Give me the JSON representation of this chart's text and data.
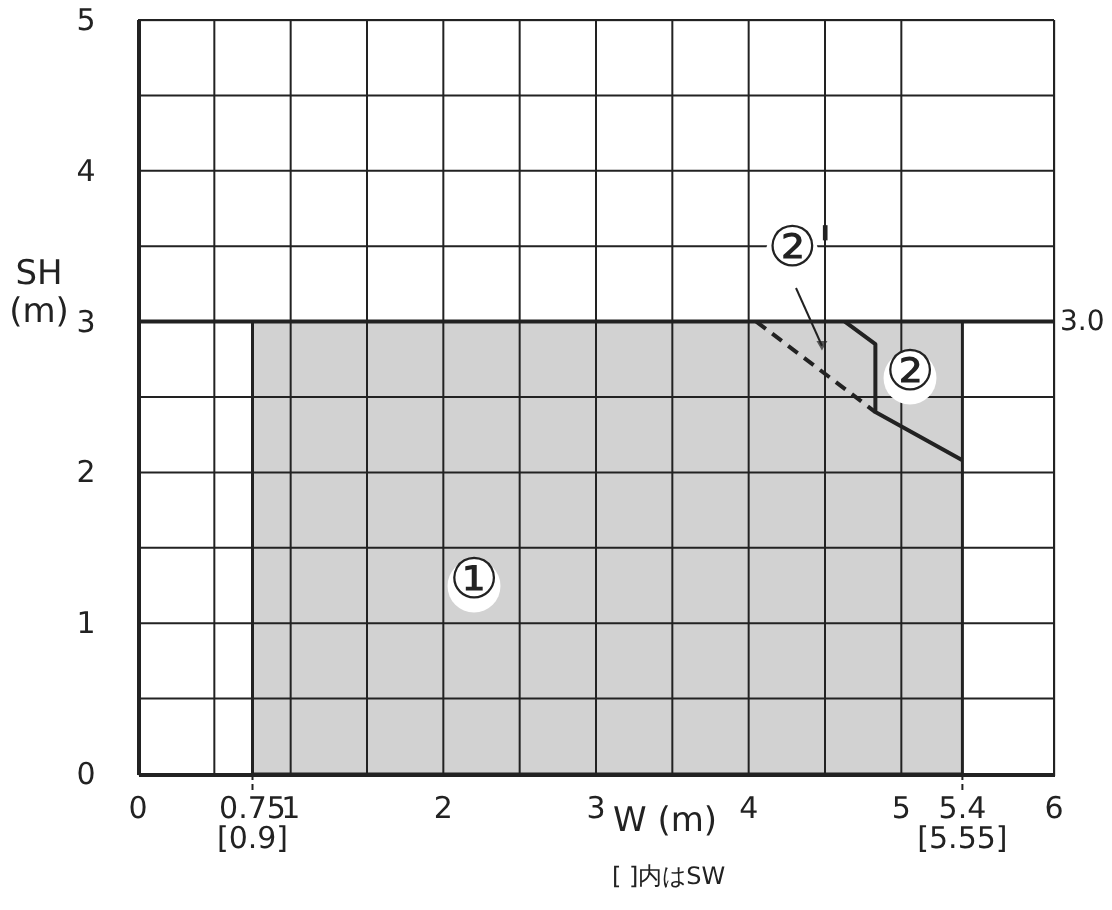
{
  "chart_data": {
    "type": "area",
    "xlabel": "W (m)",
    "ylabel": "SH (m)",
    "xlim": [
      0,
      6
    ],
    "ylim": [
      0,
      5
    ],
    "xticks": [
      0,
      {
        "value": 0.5,
        "label": null
      },
      {
        "value": 0.75,
        "label": "0.75\n[0.9]"
      },
      1,
      {
        "value": 1.5,
        "label": null
      },
      2,
      {
        "value": 2.5,
        "label": null
      },
      3,
      {
        "value": 3.5,
        "label": null
      },
      4,
      {
        "value": 4.5,
        "label": null
      },
      5,
      {
        "value": 5.4,
        "label": "5.4\n[5.55]"
      },
      6
    ],
    "yticks": [
      0,
      {
        "value": 0.5,
        "label": null
      },
      1,
      {
        "value": 1.5,
        "label": null
      },
      2,
      {
        "value": 2.5,
        "label": null
      },
      3,
      {
        "value": 3.5,
        "label": null
      },
      4,
      {
        "value": 4.5,
        "label": null
      },
      5
    ],
    "grid": true,
    "series": [
      {
        "color": "#d2d2d2",
        "x": [
          0.75,
          5.4
        ],
        "values": [
          3,
          3
        ]
      },
      {
        "type": "line",
        "color": "#222222",
        "line_style": "solid",
        "x": [
          4.63,
          4.83,
          4.83,
          5.4
        ],
        "values": [
          3,
          2.85,
          2.4,
          2.08
        ]
      },
      {
        "type": "line",
        "color": "#222222",
        "line_style": "dashed",
        "x": [
          4.05,
          4.83
        ],
        "values": [
          3,
          2.4
        ]
      }
    ],
    "ref_lines": [
      {
        "axis": "y",
        "value": 3,
        "label": "3.0"
      }
    ],
    "annotations": [
      "①",
      "②",
      {
        "text": "②'",
        "x": 4.48,
        "y": 2.84
      },
      "[ ]内はSW"
    ]
  }
}
